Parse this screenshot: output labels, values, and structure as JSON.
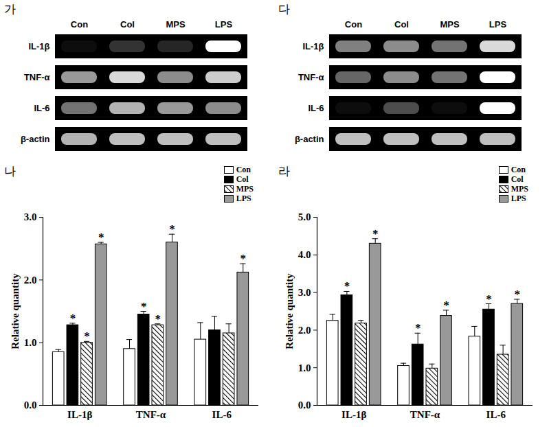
{
  "chart_data": [
    {
      "type": "heatmap",
      "title": "가",
      "x": [
        "Con",
        "Col",
        "MPS",
        "LPS"
      ],
      "y": [
        "IL-1β",
        "TNF-α",
        "IL-6",
        "β-actin"
      ],
      "cells": [
        [
          0.05,
          0.2,
          0.15,
          1.0
        ],
        [
          0.6,
          0.85,
          0.55,
          0.8
        ],
        [
          0.45,
          0.7,
          0.6,
          0.55
        ],
        [
          0.7,
          0.75,
          0.75,
          0.75
        ]
      ]
    },
    {
      "type": "heatmap",
      "title": "다",
      "x": [
        "Con",
        "Col",
        "MPS",
        "LPS"
      ],
      "y": [
        "IL-1β",
        "TNF-α",
        "IL-6",
        "β-actin"
      ],
      "cells": [
        [
          0.5,
          0.55,
          0.45,
          0.85
        ],
        [
          0.4,
          0.55,
          0.45,
          1.0
        ],
        [
          0.05,
          0.3,
          0.05,
          1.0
        ],
        [
          0.75,
          0.75,
          0.75,
          0.75
        ]
      ]
    },
    {
      "type": "bar",
      "title": "나",
      "y_label": "Relative quantity",
      "categories": [
        "IL-1β",
        "TNF-α",
        "IL-6"
      ],
      "series": [
        {
          "name": "Con",
          "color": "#ffffff",
          "values": [
            0.85,
            0.9,
            1.05
          ],
          "errors": [
            0.04,
            0.15,
            0.27
          ]
        },
        {
          "name": "Col",
          "color": "#000000",
          "values": [
            1.28,
            1.45,
            1.2
          ],
          "errors": [
            0.03,
            0.05,
            0.22
          ]
        },
        {
          "name": "MPS",
          "color": "#ffffff",
          "line_style": "hatched",
          "values": [
            1.0,
            1.28,
            1.15
          ],
          "errors": [
            0.02,
            0.02,
            0.15
          ]
        },
        {
          "name": "LPS",
          "color": "#999999",
          "values": [
            2.57,
            2.6,
            2.12
          ],
          "errors": [
            0.03,
            0.13,
            0.14
          ]
        }
      ],
      "ylim": [
        0,
        3
      ],
      "yticks": [
        0,
        1,
        2,
        3
      ],
      "legend": "top-right",
      "annotations": [
        {
          "series": "Col",
          "category": "IL-1β",
          "text": "*"
        },
        {
          "series": "MPS",
          "category": "IL-1β",
          "text": "*"
        },
        {
          "series": "LPS",
          "category": "IL-1β",
          "text": "*"
        },
        {
          "series": "Col",
          "category": "TNF-α",
          "text": "*"
        },
        {
          "series": "MPS",
          "category": "TNF-α",
          "text": "*"
        },
        {
          "series": "LPS",
          "category": "TNF-α",
          "text": "*"
        },
        {
          "series": "LPS",
          "category": "IL-6",
          "text": "*"
        }
      ]
    },
    {
      "type": "bar",
      "title": "라",
      "y_label": "Relative quantity",
      "categories": [
        "IL-1β",
        "TNF-α",
        "IL-6"
      ],
      "series": [
        {
          "name": "Con",
          "color": "#ffffff",
          "values": [
            2.25,
            1.05,
            1.83
          ],
          "errors": [
            0.17,
            0.07,
            0.27
          ]
        },
        {
          "name": "Col",
          "color": "#000000",
          "values": [
            2.93,
            1.62,
            2.55
          ],
          "errors": [
            0.1,
            0.3,
            0.15
          ]
        },
        {
          "name": "MPS",
          "color": "#ffffff",
          "line_style": "hatched",
          "values": [
            2.18,
            0.98,
            1.35
          ],
          "errors": [
            0.08,
            0.12,
            0.25
          ]
        },
        {
          "name": "LPS",
          "color": "#999999",
          "values": [
            4.3,
            2.38,
            2.7
          ],
          "errors": [
            0.13,
            0.15,
            0.12
          ]
        }
      ],
      "ylim": [
        0,
        5
      ],
      "yticks": [
        0,
        1,
        2,
        3,
        4,
        5
      ],
      "legend": "top-right",
      "annotations": [
        {
          "series": "Col",
          "category": "IL-1β",
          "text": "*"
        },
        {
          "series": "LPS",
          "category": "IL-1β",
          "text": "*"
        },
        {
          "series": "Col",
          "category": "TNF-α",
          "text": "*"
        },
        {
          "series": "LPS",
          "category": "TNF-α",
          "text": "*"
        },
        {
          "series": "Col",
          "category": "IL-6",
          "text": "*"
        },
        {
          "series": "LPS",
          "category": "IL-6",
          "text": "*"
        }
      ]
    }
  ]
}
